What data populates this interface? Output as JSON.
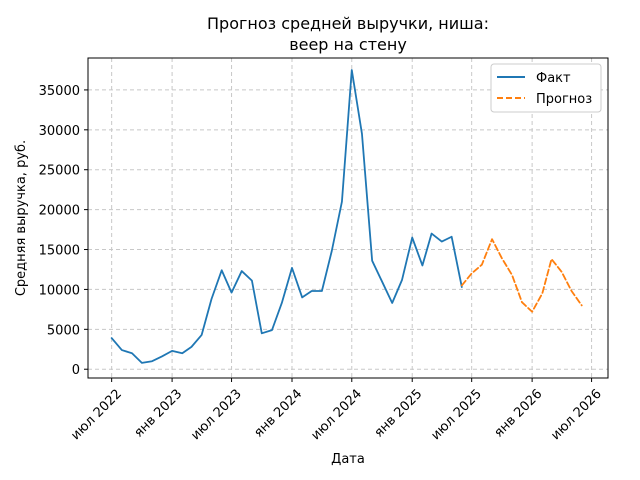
{
  "chart_data": {
    "type": "line",
    "title_lines": [
      "Прогноз средней выручки, ниша:",
      "веер на стену"
    ],
    "xlabel": "Дата",
    "ylabel": "Средняя выручка, руб.",
    "x_ticks": [
      {
        "date": "2022-07-01",
        "label": "июл 2022"
      },
      {
        "date": "2023-01-01",
        "label": "янв 2023"
      },
      {
        "date": "2023-07-01",
        "label": "июл 2023"
      },
      {
        "date": "2024-01-01",
        "label": "янв 2024"
      },
      {
        "date": "2024-07-01",
        "label": "июл 2024"
      },
      {
        "date": "2025-01-01",
        "label": "янв 2025"
      },
      {
        "date": "2025-07-01",
        "label": "июл 2025"
      },
      {
        "date": "2026-01-01",
        "label": "янв 2026"
      },
      {
        "date": "2026-07-01",
        "label": "июл 2026"
      }
    ],
    "y_ticks": [
      0,
      5000,
      10000,
      15000,
      20000,
      25000,
      30000,
      35000
    ],
    "xlim": [
      "2022-04-20",
      "2026-08-20"
    ],
    "ylim": [
      -1100,
      39000
    ],
    "grid": true,
    "legend_position": "top-right",
    "series": [
      {
        "name": "Факт",
        "color": "#1f77b4",
        "style": "solid",
        "points": [
          [
            "2022-07-01",
            3900
          ],
          [
            "2022-08-01",
            2400
          ],
          [
            "2022-09-01",
            2000
          ],
          [
            "2022-10-01",
            800
          ],
          [
            "2022-11-01",
            1000
          ],
          [
            "2022-12-01",
            1600
          ],
          [
            "2023-01-01",
            2300
          ],
          [
            "2023-02-01",
            2000
          ],
          [
            "2023-03-01",
            2800
          ],
          [
            "2023-04-01",
            4300
          ],
          [
            "2023-05-01",
            8800
          ],
          [
            "2023-06-01",
            12400
          ],
          [
            "2023-07-01",
            9600
          ],
          [
            "2023-08-01",
            12300
          ],
          [
            "2023-09-01",
            11100
          ],
          [
            "2023-10-01",
            4500
          ],
          [
            "2023-11-01",
            4900
          ],
          [
            "2023-12-01",
            8300
          ],
          [
            "2024-01-01",
            12700
          ],
          [
            "2024-02-01",
            9000
          ],
          [
            "2024-03-01",
            9800
          ],
          [
            "2024-04-01",
            9800
          ],
          [
            "2024-05-01",
            14800
          ],
          [
            "2024-06-01",
            21000
          ],
          [
            "2024-07-01",
            37500
          ],
          [
            "2024-08-01",
            29500
          ],
          [
            "2024-09-01",
            13600
          ],
          [
            "2024-10-01",
            11000
          ],
          [
            "2024-11-01",
            8300
          ],
          [
            "2024-12-01",
            11200
          ],
          [
            "2025-01-01",
            16500
          ],
          [
            "2025-02-01",
            13000
          ],
          [
            "2025-03-01",
            17000
          ],
          [
            "2025-04-01",
            16000
          ],
          [
            "2025-05-01",
            16600
          ],
          [
            "2025-06-01",
            10300
          ]
        ]
      },
      {
        "name": "Прогноз",
        "color": "#ff7f0e",
        "style": "dashed",
        "points": [
          [
            "2025-06-01",
            10500
          ],
          [
            "2025-07-01",
            12000
          ],
          [
            "2025-08-01",
            13100
          ],
          [
            "2025-09-01",
            16300
          ],
          [
            "2025-10-01",
            13900
          ],
          [
            "2025-11-01",
            11800
          ],
          [
            "2025-12-01",
            8400
          ],
          [
            "2026-01-01",
            7200
          ],
          [
            "2026-02-01",
            9500
          ],
          [
            "2026-03-01",
            13800
          ],
          [
            "2026-04-01",
            12200
          ],
          [
            "2026-05-01",
            9800
          ],
          [
            "2026-06-01",
            8000
          ]
        ]
      }
    ]
  }
}
